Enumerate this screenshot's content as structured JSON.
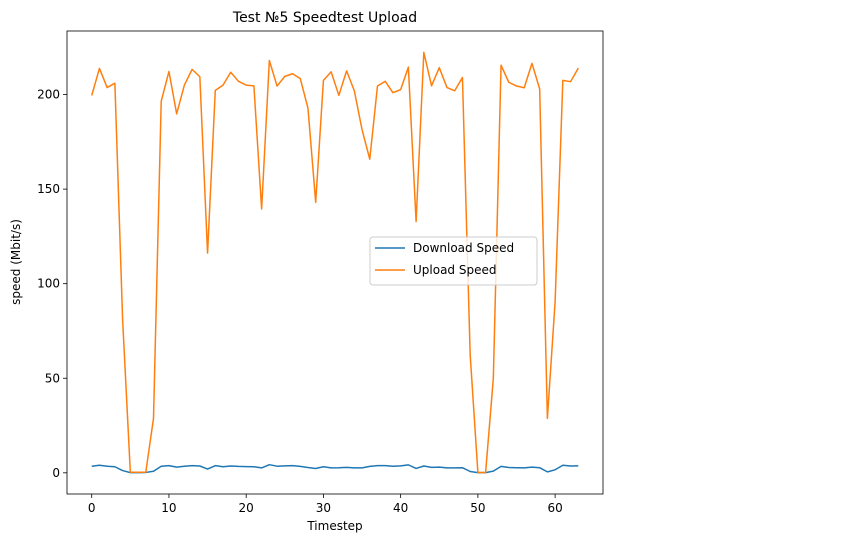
{
  "chart_data": {
    "type": "line",
    "title": "Test №5 Speedtest Upload",
    "xlabel": "Timestep",
    "ylabel": "speed (Mbit/s)",
    "xlim": [
      -3.2,
      66.2
    ],
    "ylim": [
      -11.2,
      233.6
    ],
    "xticks": [
      0,
      10,
      20,
      30,
      40,
      50,
      60
    ],
    "yticks": [
      0,
      50,
      100,
      150,
      200
    ],
    "legend_position": "center",
    "grid": false,
    "series": [
      {
        "name": "Download Speed",
        "color": "#1f77b4",
        "x": [
          0,
          1,
          2,
          3,
          4,
          5,
          6,
          7,
          8,
          9,
          10,
          11,
          12,
          13,
          14,
          15,
          16,
          17,
          18,
          19,
          20,
          21,
          22,
          23,
          24,
          25,
          26,
          27,
          28,
          29,
          30,
          31,
          32,
          33,
          34,
          35,
          36,
          37,
          38,
          39,
          40,
          41,
          42,
          43,
          44,
          45,
          46,
          47,
          48,
          49,
          50,
          51,
          52,
          53,
          54,
          55,
          56,
          57,
          58,
          59,
          60,
          61,
          62,
          63
        ],
        "values": [
          3.5,
          4.0,
          3.5,
          3.2,
          1.2,
          0.1,
          0.1,
          0.2,
          0.8,
          3.5,
          3.8,
          3.0,
          3.5,
          3.8,
          3.6,
          2.0,
          3.8,
          3.2,
          3.6,
          3.4,
          3.3,
          3.2,
          2.6,
          4.3,
          3.5,
          3.7,
          3.8,
          3.4,
          2.8,
          2.3,
          3.2,
          2.6,
          2.7,
          2.9,
          2.6,
          2.6,
          3.4,
          3.8,
          3.8,
          3.5,
          3.7,
          4.2,
          2.3,
          3.6,
          2.9,
          3.0,
          2.6,
          2.6,
          2.7,
          0.7,
          0.1,
          0.1,
          0.9,
          3.4,
          2.8,
          2.7,
          2.6,
          3.0,
          2.7,
          0.5,
          1.6,
          4.0,
          3.6,
          3.7
        ]
      },
      {
        "name": "Upload Speed",
        "color": "#ff7f0e",
        "x": [
          0,
          1,
          2,
          3,
          4,
          5,
          6,
          7,
          8,
          9,
          10,
          11,
          12,
          13,
          14,
          15,
          16,
          17,
          18,
          19,
          20,
          21,
          22,
          23,
          24,
          25,
          26,
          27,
          28,
          29,
          30,
          31,
          32,
          33,
          34,
          35,
          36,
          37,
          38,
          39,
          40,
          41,
          42,
          43,
          44,
          45,
          46,
          47,
          48,
          49,
          50,
          51,
          52,
          53,
          54,
          55,
          56,
          57,
          58,
          59,
          60,
          61,
          62,
          63
        ],
        "values": [
          199.5,
          213.8,
          203.7,
          206.0,
          81.0,
          0.3,
          0.3,
          0.3,
          28.8,
          196.5,
          212.2,
          189.8,
          205.0,
          213.3,
          209.4,
          116.2,
          202.2,
          205.0,
          211.8,
          207.0,
          205.0,
          204.6,
          139.5,
          218.0,
          204.5,
          209.6,
          211.0,
          208.5,
          192.8,
          143.0,
          207.5,
          212.0,
          199.6,
          212.5,
          202.0,
          181.5,
          165.8,
          204.5,
          207.0,
          201.0,
          202.6,
          214.5,
          132.8,
          222.3,
          204.6,
          214.2,
          203.7,
          202.0,
          209.0,
          62.5,
          0.2,
          0.2,
          50.0,
          215.5,
          206.5,
          204.5,
          203.6,
          216.5,
          203.0,
          28.8,
          90.5,
          207.5,
          206.8,
          214.0
        ]
      }
    ]
  }
}
